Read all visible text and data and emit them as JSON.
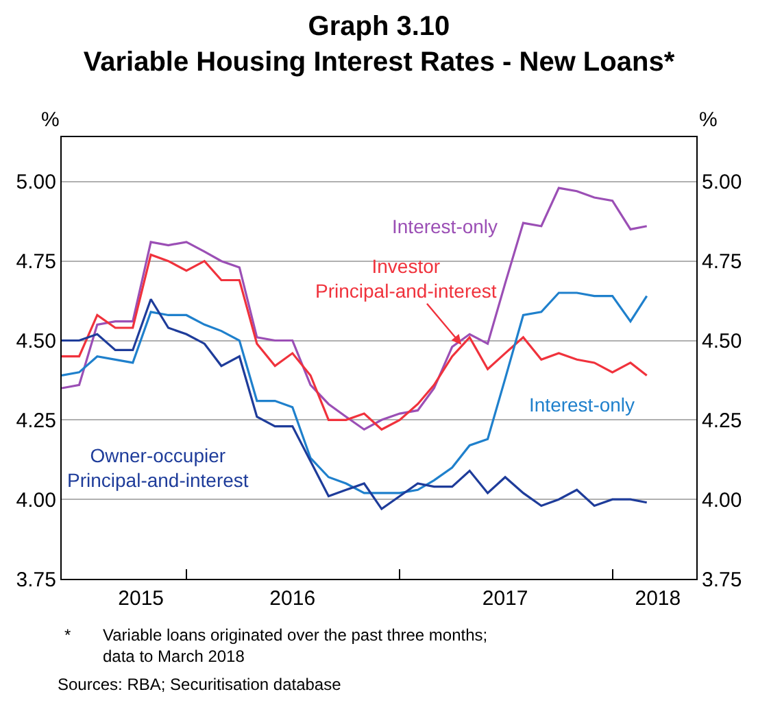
{
  "chart_data": {
    "type": "line",
    "title": "Graph 3.10",
    "subtitle": "Variable Housing Interest Rates - New Loans*",
    "ylabel": "%",
    "y2label": "%",
    "x": [
      "2015-06",
      "2015-07",
      "2015-08",
      "2015-09",
      "2015-10",
      "2015-11",
      "2015-12",
      "2016-01",
      "2016-02",
      "2016-03",
      "2016-04",
      "2016-05",
      "2016-06",
      "2016-07",
      "2016-08",
      "2016-09",
      "2016-10",
      "2016-11",
      "2016-12",
      "2017-01",
      "2017-02",
      "2017-03",
      "2017-04",
      "2017-05",
      "2017-06",
      "2017-07",
      "2017-08",
      "2017-09",
      "2017-10",
      "2017-11",
      "2017-12",
      "2018-01",
      "2018-02",
      "2018-03"
    ],
    "series": [
      {
        "name": "Interest-only",
        "color": "#9b4fb5",
        "values": [
          4.35,
          4.36,
          4.55,
          4.56,
          4.56,
          4.81,
          4.8,
          4.81,
          4.78,
          4.75,
          4.73,
          4.51,
          4.5,
          4.5,
          4.36,
          4.3,
          4.26,
          4.22,
          4.25,
          4.27,
          4.28,
          4.35,
          4.48,
          4.52,
          4.49,
          4.68,
          4.87,
          4.86,
          4.98,
          4.97,
          4.95,
          4.94,
          4.85,
          4.86
        ]
      },
      {
        "name": "Investor\nPrincipal-and-interest",
        "color": "#f0323c",
        "values": [
          4.45,
          4.45,
          4.58,
          4.54,
          4.54,
          4.77,
          4.75,
          4.72,
          4.75,
          4.69,
          4.69,
          4.49,
          4.42,
          4.46,
          4.39,
          4.25,
          4.25,
          4.27,
          4.22,
          4.25,
          4.3,
          4.36,
          4.45,
          4.51,
          4.41,
          4.46,
          4.51,
          4.44,
          4.46,
          4.44,
          4.43,
          4.4,
          4.43,
          4.39
        ]
      },
      {
        "name": "Interest-only",
        "color": "#1f80cc",
        "values": [
          4.39,
          4.4,
          4.45,
          4.44,
          4.43,
          4.59,
          4.58,
          4.58,
          4.55,
          4.53,
          4.5,
          4.31,
          4.31,
          4.29,
          4.13,
          4.07,
          4.05,
          4.02,
          4.02,
          4.02,
          4.03,
          4.06,
          4.1,
          4.17,
          4.19,
          4.38,
          4.58,
          4.59,
          4.65,
          4.65,
          4.64,
          4.64,
          4.56,
          4.64
        ]
      },
      {
        "name": "Owner-occupier\nPrincipal-and-interest",
        "color": "#1e3c9a",
        "values": [
          4.5,
          4.5,
          4.52,
          4.47,
          4.47,
          4.63,
          4.54,
          4.52,
          4.49,
          4.42,
          4.45,
          4.26,
          4.23,
          4.23,
          4.12,
          4.01,
          4.03,
          4.05,
          3.97,
          4.01,
          4.05,
          4.04,
          4.04,
          4.09,
          4.02,
          4.07,
          4.02,
          3.98,
          4.0,
          4.03,
          3.98,
          4.0,
          4.0,
          3.99
        ]
      }
    ],
    "xlim": [
      "2015-06-01",
      "2018-05-25"
    ],
    "xticks": [
      {
        "value": "2015-10-15",
        "label": "2015"
      },
      {
        "value": "2016-01-01",
        "label": null
      },
      {
        "value": "2016-07-01",
        "label": "2016"
      },
      {
        "value": "2017-01-01",
        "label": null
      },
      {
        "value": "2017-07-01",
        "label": "2017"
      },
      {
        "value": "2018-01-01",
        "label": null
      },
      {
        "value": "2018-03-20",
        "label": "2018"
      }
    ],
    "ylim": [
      3.75,
      5.14
    ],
    "yticks": [
      {
        "value": 3.75,
        "label": "3.75"
      },
      {
        "value": 4,
        "label": "4.00"
      },
      {
        "value": 4.25,
        "label": "4.25"
      },
      {
        "value": 4.5,
        "label": "4.50"
      },
      {
        "value": 4.75,
        "label": "4.75"
      },
      {
        "value": 5,
        "label": "5.00"
      }
    ],
    "y2lim": [
      3.75,
      5.14
    ],
    "y2ticks": [
      {
        "value": 3.75,
        "label": "3.75"
      },
      {
        "value": 4,
        "label": "4.00"
      },
      {
        "value": 4.25,
        "label": "4.25"
      },
      {
        "value": 4.5,
        "label": "4.50"
      },
      {
        "value": 4.75,
        "label": "4.75"
      },
      {
        "value": 5,
        "label": "5.00"
      }
    ],
    "grid": "y",
    "legend": false,
    "marker": "none",
    "line_style": "solid",
    "annotations": [
      "*\tVariable loans originated over the past three months;\ndata to March 2018",
      "Sources: RBA; Securitisation database"
    ]
  }
}
